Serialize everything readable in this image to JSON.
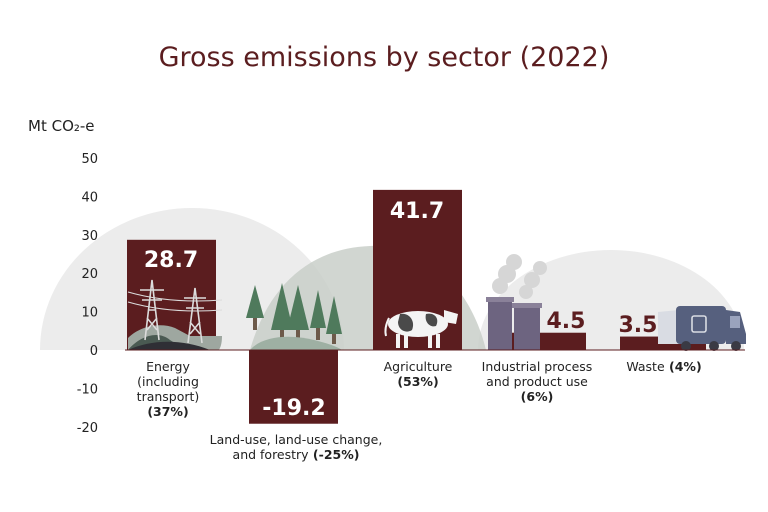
{
  "chart_data": {
    "type": "bar",
    "title": "Gross emissions by sector (2022)",
    "ylabel": "Mt CO₂-e",
    "ylim": [
      -20,
      50
    ],
    "yticks": [
      50,
      40,
      30,
      20,
      10,
      0,
      -10,
      -20
    ],
    "grid": false,
    "categories": [
      {
        "lines": [
          "Energy",
          "(including",
          "transport)"
        ],
        "share": "(37%)"
      },
      {
        "lines": [
          "Land-use, land-use change,",
          "and forestry"
        ],
        "share": "(-25%)"
      },
      {
        "lines": [
          "Agriculture"
        ],
        "share": "(53%)"
      },
      {
        "lines": [
          "Industrial process",
          "and product use"
        ],
        "share": "(6%)"
      },
      {
        "lines": [
          "Waste"
        ],
        "share": "(4%)"
      }
    ],
    "values": [
      28.7,
      -19.2,
      41.7,
      4.5,
      3.5
    ],
    "value_labels": [
      "28.7",
      "-19.2",
      "41.7",
      "4.5",
      "3.5"
    ]
  },
  "colors": {
    "bar": "#5b1d1f",
    "title": "#5b1d1f",
    "hill_light": "#ececec",
    "hill_mid": "#c9cfc9",
    "tree": "#4f7a5c",
    "pylon": "#dcdcdc",
    "chimney": "#6d6480",
    "truck": "#56607e"
  },
  "icons": [
    "pylon-icon",
    "tree-icon",
    "cow-icon",
    "factory-icon",
    "truck-icon"
  ]
}
